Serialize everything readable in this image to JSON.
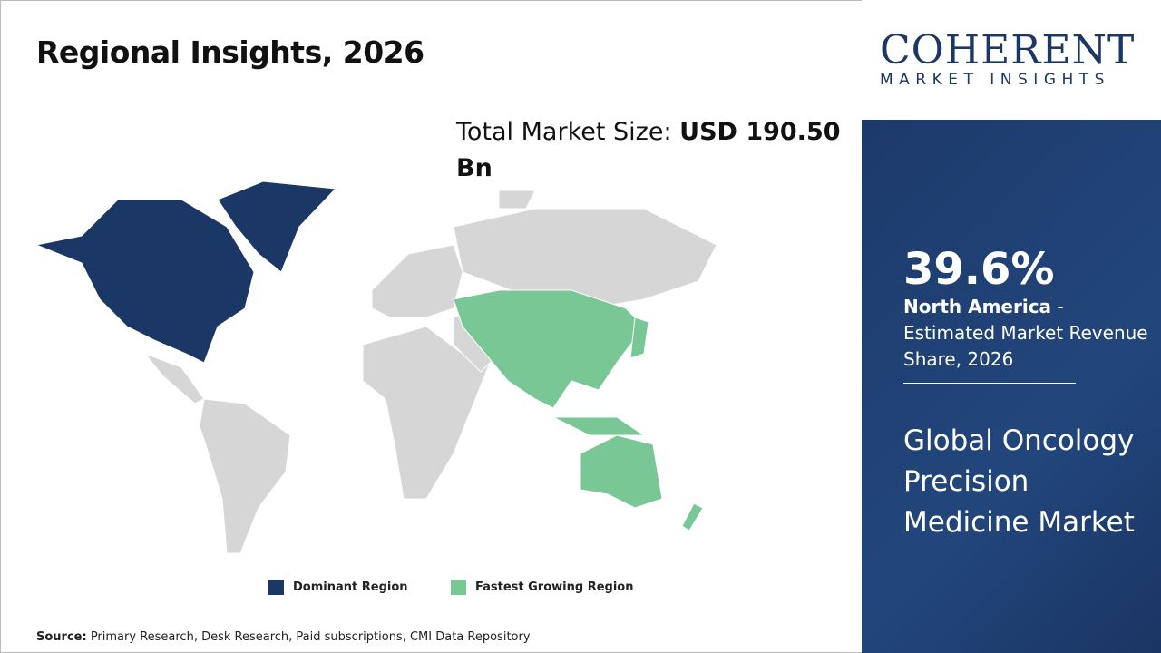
{
  "header": {
    "title": "Regional Insights, 2026"
  },
  "market_size": {
    "label": "Total Market Size: ",
    "value": "USD 190.50 Bn"
  },
  "legend": [
    {
      "label": "Dominant Region",
      "color": "#1b3766"
    },
    {
      "label": "Fastest Growing Region",
      "color": "#79c795"
    }
  ],
  "map": {
    "land_color": "#d6d6d6",
    "dominant_region": "North America",
    "fastest_growing_region": "Asia Pacific"
  },
  "source": {
    "label": "Source:",
    "text": " Primary Research, Desk Research, Paid subscriptions, CMI Data Repository"
  },
  "logo": {
    "name": "COHERENT",
    "tagline": "MARKET INSIGHTS"
  },
  "stat": {
    "value": "39.6%",
    "region": "North America",
    "desc": " - Estimated Market Revenue Share, 2026"
  },
  "market_title": "Global Oncology Precision Medicine Market"
}
